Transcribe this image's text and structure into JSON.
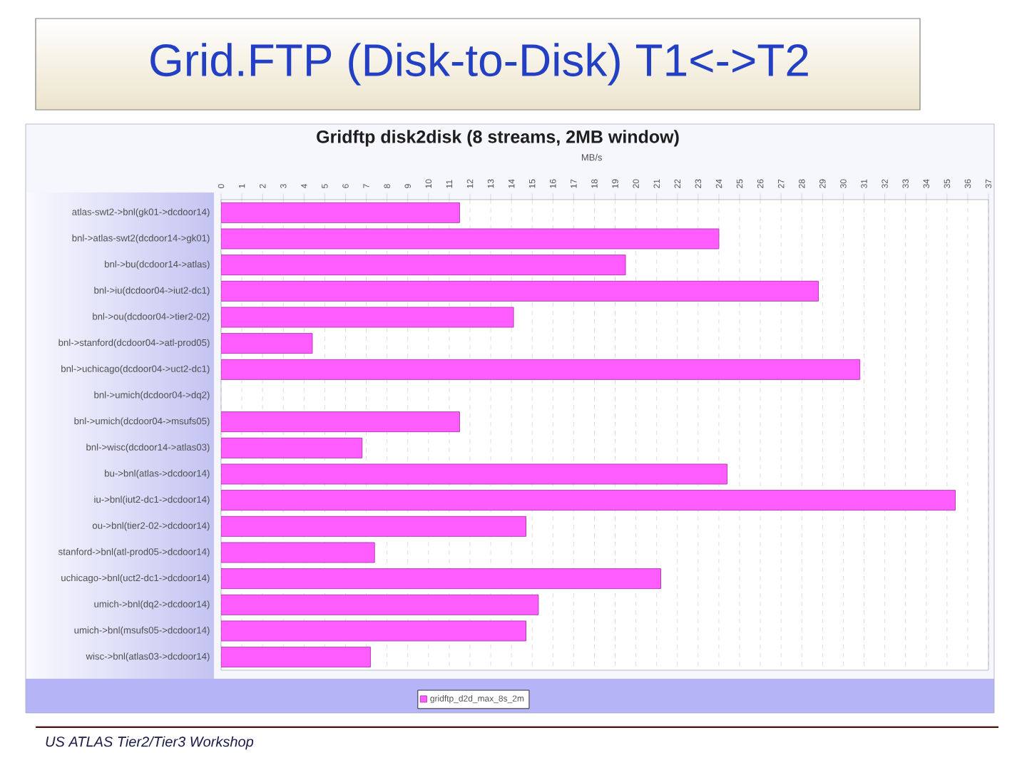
{
  "chart_data": {
    "type": "bar",
    "orientation": "horizontal",
    "title": "Grid.FTP (Disk-to-Disk) T1<->T2",
    "subtitle": "Gridftp  disk2disk (8 streams, 2MB window)",
    "xlabel": "MB/s",
    "annotations": [
      "US ATLAS Tier2/Tier3 Workshop"
    ],
    "categories": [
      "atlas-swt2->bnl(gk01->dcdoor14)",
      "bnl->atlas-swt2(dcdoor14->gk01)",
      "bnl->bu(dcdoor14->atlas)",
      "bnl->iu(dcdoor04->iut2-dc1)",
      "bnl->ou(dcdoor04->tier2-02)",
      "bnl->stanford(dcdoor04->atl-prod05)",
      "bnl->uchicago(dcdoor04->uct2-dc1)",
      "bnl->umich(dcdoor04->dq2)",
      "bnl->umich(dcdoor04->msufs05)",
      "bnl->wisc(dcdoor14->atlas03)",
      "bu->bnl(atlas->dcdoor14)",
      "iu->bnl(iut2-dc1->dcdoor14)",
      "ou->bnl(tier2-02->dcdoor14)",
      "stanford->bnl(atl-prod05->dcdoor14)",
      "uchicago->bnl(uct2-dc1->dcdoor14)",
      "umich->bnl(dq2->dcdoor14)",
      "umich->bnl(msufs05->dcdoor14)",
      "wisc->bnl(atlas03->dcdoor14)"
    ],
    "series": [
      {
        "name": "gridftp_d2d_max_8s_2m",
        "color": "#ff5cff",
        "values": [
          11.5,
          24.0,
          19.5,
          28.8,
          14.1,
          4.4,
          30.8,
          null,
          11.5,
          6.8,
          24.4,
          35.4,
          14.7,
          7.4,
          21.2,
          15.3,
          14.7,
          7.2
        ]
      }
    ],
    "xlim": [
      0,
      37
    ],
    "xticks": [
      0,
      1,
      2,
      3,
      4,
      5,
      6,
      7,
      8,
      9,
      10,
      11,
      12,
      13,
      14,
      15,
      16,
      17,
      18,
      19,
      20,
      21,
      22,
      23,
      24,
      25,
      26,
      27,
      28,
      29,
      30,
      31,
      32,
      33,
      34,
      35,
      36,
      37
    ],
    "grid": "x",
    "legend": "bottom"
  }
}
